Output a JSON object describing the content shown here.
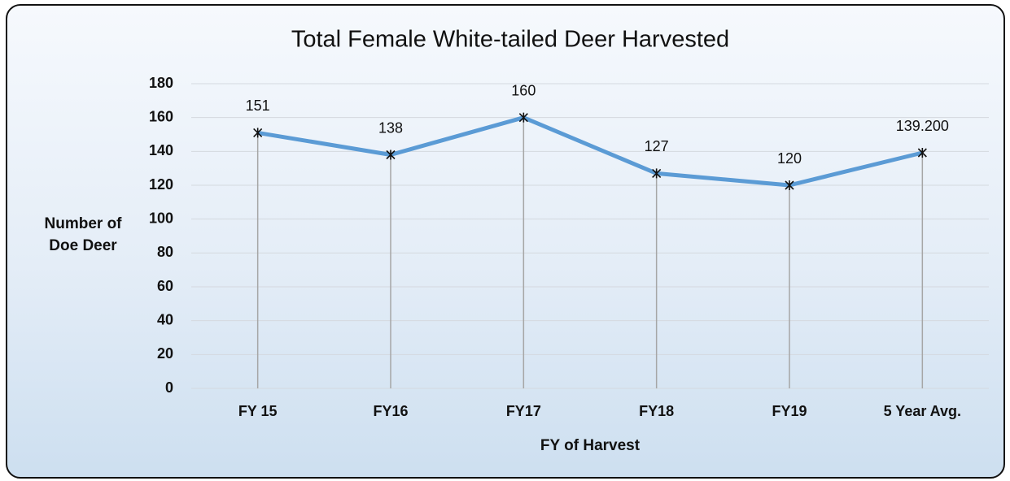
{
  "chart_data": {
    "type": "line",
    "title": "Total Female White-tailed Deer Harvested",
    "x_label": "FY of Harvest",
    "y_label": "Number of Doe Deer",
    "categories": [
      "FY 15",
      "FY16",
      "FY17",
      "FY18",
      "FY19",
      "5 Year Avg."
    ],
    "values": [
      151,
      138,
      160,
      127,
      120,
      139.2
    ],
    "value_labels": [
      "151",
      "138",
      "160",
      "127",
      "120",
      "139.200"
    ],
    "color": "#5b9bd5",
    "ylim": [
      0,
      180
    ],
    "yticks": [
      0,
      20,
      40,
      60,
      80,
      100,
      120,
      140,
      160,
      180
    ],
    "grid": true
  }
}
